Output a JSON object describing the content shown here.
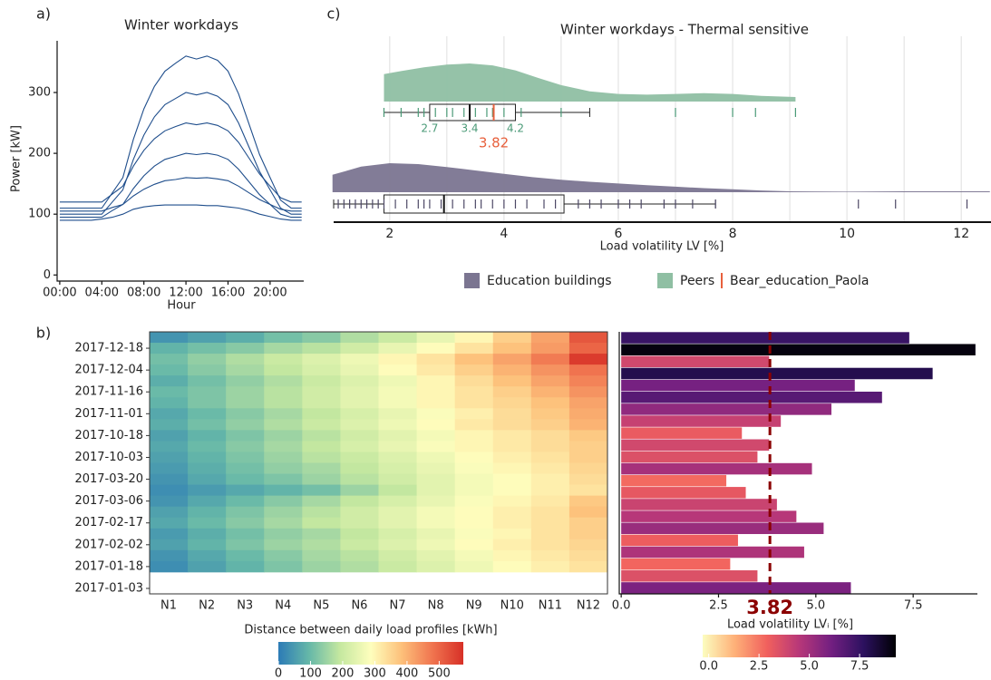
{
  "chart_data": [
    {
      "type": "line",
      "panel": "a)",
      "title": "Winter workdays",
      "xlabel": "Hour",
      "ylabel": "Power [kW]",
      "x": [
        0,
        1,
        2,
        3,
        4,
        5,
        6,
        7,
        8,
        9,
        10,
        11,
        12,
        13,
        14,
        15,
        16,
        17,
        18,
        19,
        20,
        21,
        22,
        23
      ],
      "xlim": [
        -0.25,
        23.2
      ],
      "ylim": [
        -10,
        385
      ],
      "xticks": [
        {
          "value": 0,
          "label": "00:00"
        },
        {
          "value": 4,
          "label": "04:00"
        },
        {
          "value": 8,
          "label": "08:00"
        },
        {
          "value": 12,
          "label": "12:00"
        },
        {
          "value": 16,
          "label": "16:00"
        },
        {
          "value": 20,
          "label": "20:00"
        }
      ],
      "yticks": [
        0,
        100,
        200,
        300
      ],
      "series": [
        {
          "color": "#1f4e8c",
          "values": [
            110,
            110,
            110,
            110,
            110,
            135,
            160,
            223,
            273,
            310,
            335,
            348,
            360,
            355,
            360,
            353,
            335,
            298,
            248,
            198,
            160,
            123,
            110,
            110
          ]
        },
        {
          "color": "#1f4e8c",
          "values": [
            100,
            100,
            100,
            100,
            100,
            120,
            140,
            190,
            230,
            260,
            280,
            290,
            300,
            296,
            300,
            294,
            280,
            250,
            210,
            170,
            140,
            110,
            100,
            100
          ]
        },
        {
          "color": "#1f4e8c",
          "values": [
            120,
            120,
            120,
            120,
            120,
            133,
            146,
            179,
            205,
            224,
            237,
            244,
            250,
            247,
            250,
            246,
            237,
            218,
            192,
            166,
            146,
            127,
            120,
            120
          ]
        },
        {
          "color": "#1f4e8c",
          "values": [
            95,
            95,
            95,
            95,
            95,
            106,
            116,
            142,
            163,
            179,
            190,
            195,
            200,
            198,
            200,
            197,
            190,
            174,
            153,
            132,
            116,
            100,
            95,
            95
          ]
        },
        {
          "color": "#1f4e8c",
          "values": [
            105,
            105,
            105,
            105,
            105,
            111,
            116,
            130,
            141,
            149,
            155,
            157,
            160,
            159,
            160,
            158,
            155,
            146,
            135,
            124,
            116,
            108,
            105,
            105
          ]
        },
        {
          "color": "#1f4e8c",
          "values": [
            90,
            90,
            90,
            90,
            92,
            95,
            100,
            108,
            112,
            114,
            115,
            115,
            115,
            115,
            114,
            114,
            112,
            110,
            106,
            100,
            96,
            92,
            90,
            90
          ]
        }
      ]
    },
    {
      "type": "raincloud",
      "panel": "c)",
      "title": "Winter workdays - Thermal sensitive",
      "xlabel": "Load volatility LV [%]",
      "xlim": [
        1.02,
        12.52
      ],
      "xticks": [
        2,
        4,
        6,
        8,
        10,
        12
      ],
      "minor_xticks": [
        3,
        5,
        7,
        9,
        11
      ],
      "grid": true,
      "groups": [
        {
          "name": "Education buildings",
          "color": "#7b7591",
          "rug_color": "#4d4866",
          "density": {
            "x": [
              1.0,
              1.5,
              2.0,
              2.5,
              3.0,
              3.5,
              4.0,
              4.5,
              5.0,
              5.5,
              6.0,
              6.5,
              7.0,
              7.5,
              8.0,
              8.5,
              9.0,
              10,
              11,
              12,
              12.5
            ],
            "y": [
              0.6,
              0.88,
              1.0,
              0.97,
              0.87,
              0.75,
              0.63,
              0.52,
              0.43,
              0.36,
              0.3,
              0.24,
              0.19,
              0.14,
              0.1,
              0.06,
              0.03,
              0.02,
              0.03,
              0.03,
              0.03
            ]
          },
          "box": {
            "whisker_low": 1.02,
            "q1": 1.9,
            "median": 2.95,
            "q3": 5.05,
            "whisker_high": 7.7
          },
          "rug": [
            1.1,
            1.2,
            1.3,
            1.4,
            1.5,
            1.6,
            1.7,
            1.8,
            1.9,
            2.1,
            2.3,
            2.5,
            2.6,
            2.7,
            2.9,
            3.1,
            3.3,
            3.5,
            3.6,
            3.8,
            4.0,
            4.2,
            4.4,
            4.7,
            4.9,
            5.3,
            5.5,
            5.7,
            6.0,
            6.2,
            6.4,
            6.8,
            7.0,
            7.3,
            7.7,
            10.2,
            10.85,
            12.1
          ]
        },
        {
          "name": "Peers",
          "color": "#8fbfa3",
          "rug_color": "#4a9a77",
          "show_quartile_labels": true,
          "density": {
            "x": [
              1.9,
              2.2,
              2.6,
              3.0,
              3.4,
              3.8,
              4.2,
              4.6,
              5.0,
              5.5,
              6.0,
              6.5,
              7.0,
              7.5,
              8.0,
              8.5,
              9.1
            ],
            "y": [
              0.72,
              0.8,
              0.9,
              0.97,
              1.0,
              0.95,
              0.82,
              0.62,
              0.43,
              0.27,
              0.2,
              0.18,
              0.2,
              0.22,
              0.2,
              0.15,
              0.12
            ]
          },
          "box": {
            "whisker_low": 1.9,
            "q1": 2.7,
            "median": 3.4,
            "q3": 4.2,
            "whisker_high": 5.5
          },
          "rug": [
            1.9,
            2.2,
            2.5,
            2.6,
            2.8,
            3.0,
            3.1,
            3.3,
            3.5,
            3.7,
            3.8,
            4.0,
            4.3,
            5.0,
            7.0,
            8.0,
            8.4,
            9.1
          ]
        }
      ],
      "reference": {
        "name": "Bear_education_Paola",
        "value": 3.82,
        "color": "#e8603c"
      }
    },
    {
      "type": "heatmap",
      "panel": "b)",
      "rows": [
        null,
        "2017-12-18",
        null,
        "2017-12-04",
        null,
        "2017-11-16",
        null,
        "2017-11-01",
        null,
        "2017-10-18",
        null,
        "2017-10-03",
        null,
        "2017-03-20",
        null,
        "2017-03-06",
        null,
        "2017-02-17",
        null,
        "2017-02-02",
        null,
        "2017-01-18",
        null,
        "2017-01-03"
      ],
      "columns": [
        "N1",
        "N2",
        "N3",
        "N4",
        "N5",
        "N6",
        "N7",
        "N8",
        "N9",
        "N10",
        "N11",
        "N12"
      ],
      "values": [
        [
          40,
          60,
          80,
          110,
          130,
          170,
          200,
          250,
          300,
          360,
          420,
          520
        ],
        [
          90,
          110,
          130,
          160,
          180,
          210,
          250,
          290,
          330,
          380,
          430,
          500
        ],
        [
          110,
          140,
          170,
          200,
          230,
          260,
          300,
          330,
          380,
          420,
          470,
          560
        ],
        [
          100,
          130,
          160,
          190,
          220,
          250,
          290,
          320,
          360,
          400,
          440,
          480
        ],
        [
          80,
          110,
          140,
          170,
          200,
          230,
          260,
          300,
          340,
          380,
          420,
          460
        ],
        [
          100,
          120,
          150,
          180,
          210,
          240,
          270,
          300,
          330,
          360,
          400,
          440
        ],
        [
          90,
          120,
          150,
          180,
          210,
          240,
          270,
          300,
          330,
          350,
          380,
          420
        ],
        [
          70,
          100,
          130,
          160,
          190,
          220,
          250,
          280,
          310,
          340,
          370,
          410
        ],
        [
          80,
          110,
          140,
          170,
          200,
          230,
          260,
          290,
          320,
          340,
          360,
          400
        ],
        [
          60,
          90,
          120,
          150,
          180,
          210,
          240,
          270,
          300,
          320,
          340,
          370
        ],
        [
          70,
          100,
          130,
          160,
          190,
          220,
          250,
          280,
          300,
          320,
          340,
          360
        ],
        [
          60,
          90,
          120,
          150,
          180,
          200,
          230,
          260,
          290,
          310,
          330,
          360
        ],
        [
          50,
          80,
          110,
          140,
          160,
          190,
          220,
          250,
          280,
          300,
          320,
          350
        ],
        [
          40,
          70,
          100,
          120,
          150,
          180,
          210,
          240,
          270,
          290,
          310,
          340
        ],
        [
          30,
          50,
          70,
          90,
          110,
          150,
          190,
          240,
          270,
          290,
          310,
          330
        ],
        [
          40,
          70,
          100,
          130,
          160,
          190,
          220,
          250,
          280,
          300,
          320,
          370
        ],
        [
          60,
          90,
          120,
          150,
          180,
          210,
          240,
          270,
          290,
          310,
          330,
          380
        ],
        [
          70,
          100,
          130,
          160,
          190,
          210,
          240,
          270,
          290,
          310,
          330,
          360
        ],
        [
          50,
          80,
          110,
          140,
          160,
          190,
          220,
          250,
          280,
          300,
          330,
          360
        ],
        [
          60,
          90,
          120,
          150,
          170,
          200,
          230,
          260,
          290,
          310,
          330,
          350
        ],
        [
          40,
          70,
          100,
          130,
          160,
          180,
          210,
          240,
          270,
          300,
          320,
          340
        ],
        [
          30,
          60,
          90,
          120,
          150,
          170,
          200,
          230,
          260,
          290,
          310,
          330
        ]
      ],
      "colorscale": [
        "#2c7bb6",
        "#66b8a8",
        "#c5e8a0",
        "#fefebd",
        "#fdc07a",
        "#f0744f",
        "#d73027"
      ],
      "zlim": [
        0,
        575
      ],
      "colorbar": {
        "label": "Distance between daily load profiles [kWh]",
        "ticks": [
          0,
          100,
          200,
          300,
          400,
          500
        ]
      }
    },
    {
      "type": "barh",
      "values": [
        7.4,
        9.1,
        3.8,
        8.0,
        6.0,
        6.7,
        5.4,
        4.1,
        3.1,
        3.8,
        3.5,
        4.9,
        2.7,
        3.2,
        4.0,
        4.5,
        5.2,
        3.0,
        4.7,
        2.8,
        3.5,
        5.9
      ],
      "xlim": [
        -0.05,
        9.15
      ],
      "xticks": [
        {
          "value": 0,
          "label": "0.0"
        },
        {
          "value": 2.5,
          "label": "2.5"
        },
        {
          "value": 5,
          "label": "5.0"
        },
        {
          "value": 7.5,
          "label": "7.5"
        }
      ],
      "reference_line": {
        "value": 3.82,
        "color": "#8b0000"
      },
      "colorscale": [
        "#fcfdbf",
        "#feb078",
        "#f1605d",
        "#b73779",
        "#721f81",
        "#2c115f",
        "#000004"
      ],
      "clim": [
        -0.3,
        9.3
      ],
      "colorbar": {
        "label": "Load volatility LVᵢ [%]",
        "ticks": [
          {
            "value": 0,
            "label": "0.0"
          },
          {
            "value": 2.5,
            "label": "2.5"
          },
          {
            "value": 5,
            "label": "5.0"
          },
          {
            "value": 7.5,
            "label": "7.5"
          }
        ]
      }
    }
  ]
}
